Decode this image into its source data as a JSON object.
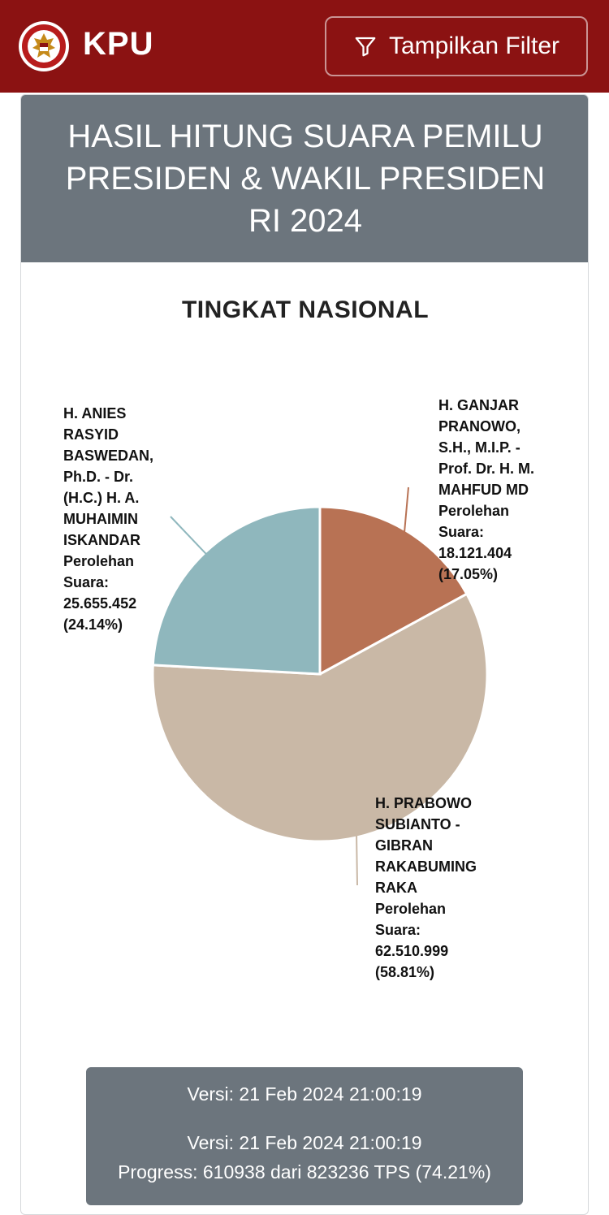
{
  "header": {
    "brand": "KPU",
    "logo_text": "KOMISI PEMILIHAN UMUM",
    "filter_label": "Tampilkan Filter",
    "filter_icon": "filter-icon"
  },
  "card": {
    "title_lines": [
      "HASIL HITUNG SUARA PEMILU",
      "PRESIDEN & WAKIL PRESIDEN",
      "RI 2024"
    ],
    "subtitle": "TINGKAT NASIONAL"
  },
  "chart_data": {
    "type": "pie",
    "start_angle_deg": 0,
    "slices": [
      {
        "name": "H. GANJAR PRANOWO, S.H., M.I.P. - Prof. Dr. H. M. MAHFUD MD",
        "name_lines": [
          "H. GANJAR",
          "PRANOWO,",
          "S.H., M.I.P. -",
          "Prof. Dr. H. M.",
          "MAHFUD MD"
        ],
        "label_suffix": [
          "Perolehan",
          "Suara:"
        ],
        "value": 18121404,
        "value_text": "18.121.404",
        "percent": 17.05,
        "percent_text": "(17.05%)",
        "color": "#b87254"
      },
      {
        "name": "H. PRABOWO SUBIANTO - GIBRAN RAKABUMING RAKA",
        "name_lines": [
          "H. PRABOWO",
          "SUBIANTO -",
          "GIBRAN",
          "RAKABUMING",
          "RAKA"
        ],
        "label_suffix": [
          "Perolehan",
          "Suara:"
        ],
        "value": 62510999,
        "value_text": "62.510.999",
        "percent": 58.81,
        "percent_text": "(58.81%)",
        "color": "#c9b8a6"
      },
      {
        "name": "H. ANIES RASYID BASWEDAN, Ph.D. - Dr. (H.C.) H. A. MUHAIMIN ISKANDAR",
        "name_lines": [
          "H. ANIES",
          "RASYID",
          "BASWEDAN,",
          "Ph.D. - Dr.",
          "(H.C.) H. A.",
          "MUHAIMIN",
          "ISKANDAR"
        ],
        "label_suffix": [
          "Perolehan",
          "Suara:"
        ],
        "value": 25655452,
        "value_text": "25.655.452",
        "percent": 24.14,
        "percent_text": "(24.14%)",
        "color": "#8fb7bd"
      }
    ]
  },
  "footer": {
    "version_1": "Versi: 21 Feb 2024 21:00:19",
    "version_2": "Versi: 21 Feb 2024 21:00:19",
    "progress": "Progress: 610938 dari 823236 TPS (74.21%)",
    "progress_fraction": 0.7421
  }
}
